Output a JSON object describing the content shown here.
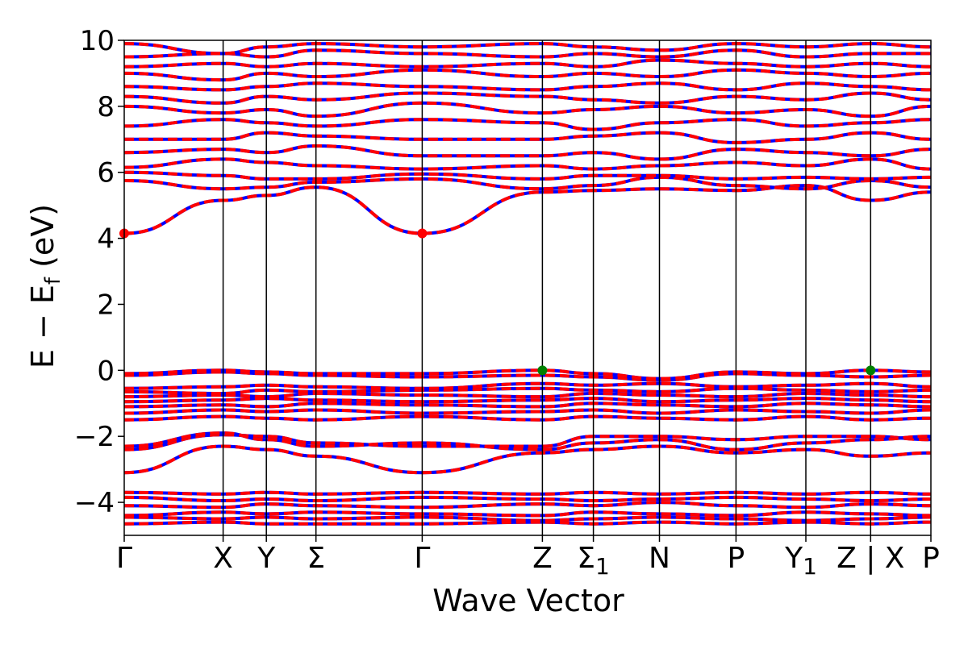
{
  "chart_data": {
    "type": "line",
    "title": "",
    "xlabel": "Wave Vector",
    "ylabel": "E − E",
    "ylabel_sub": "f",
    "ylabel_unit": " (eV)",
    "ylim": [
      -5,
      10
    ],
    "yticks": [
      {
        "value": 10,
        "label": "10"
      },
      {
        "value": 8,
        "label": "8"
      },
      {
        "value": 6,
        "label": "6"
      },
      {
        "value": 4,
        "label": "4"
      },
      {
        "value": 2,
        "label": "2"
      },
      {
        "value": 0,
        "label": "0"
      },
      {
        "value": -2,
        "label": "−2"
      },
      {
        "value": -4,
        "label": "−4"
      }
    ],
    "kpoints": [
      {
        "label": "Γ",
        "pos": 0
      },
      {
        "label": "X",
        "pos": 1.226
      },
      {
        "label": "Y",
        "pos": 1.762
      },
      {
        "label": "Σ",
        "pos": 2.377
      },
      {
        "label": "Γ",
        "pos": 3.694
      },
      {
        "label": "Z",
        "pos": 5.184
      },
      {
        "label": "Σ1",
        "pos": 5.816
      },
      {
        "label": "N",
        "pos": 6.635
      },
      {
        "label": "P",
        "pos": 7.584
      },
      {
        "label": "Y1",
        "pos": 8.45
      },
      {
        "label": "Z | X",
        "pos": 9.253
      },
      {
        "label": "P",
        "pos": 10.0
      }
    ],
    "kpoint_label_offsets": [
      0,
      0,
      0,
      0,
      0,
      0,
      0,
      0,
      0,
      -6,
      0,
      0
    ],
    "xlim": [
      0,
      10.0
    ],
    "spin_colors": {
      "up": "#ff0000",
      "down": "#0000ff"
    },
    "cbm": {
      "energy": 4.15,
      "positions": [
        0,
        3.694
      ],
      "color": "#ff0000"
    },
    "vbm": {
      "energy": 0.0,
      "positions": [
        5.184,
        9.253
      ],
      "color": "#008000"
    },
    "bands_at_kpoints": [
      [
        -4.65,
        -4.6,
        -4.65,
        -4.65,
        -4.65,
        -4.6,
        -4.65,
        -4.6,
        -4.65,
        -4.6,
        -4.65,
        -4.6
      ],
      [
        -4.45,
        -4.5,
        -4.45,
        -4.5,
        -4.45,
        -4.55,
        -4.5,
        -4.45,
        -4.5,
        -4.55,
        -4.5,
        -4.45
      ],
      [
        -4.4,
        -4.3,
        -4.35,
        -4.3,
        -4.35,
        -4.4,
        -4.3,
        -4.35,
        -4.4,
        -4.3,
        -4.35,
        -4.4
      ],
      [
        -4.1,
        -4.15,
        -4.05,
        -4.1,
        -4.15,
        -4.05,
        -4.1,
        -4.0,
        -4.1,
        -4.15,
        -4.05,
        -4.1
      ],
      [
        -3.85,
        -3.95,
        -3.9,
        -3.95,
        -3.85,
        -3.9,
        -3.95,
        -3.9,
        -3.85,
        -3.9,
        -3.95,
        -3.9
      ],
      [
        -3.7,
        -3.75,
        -3.7,
        -3.75,
        -3.7,
        -3.75,
        -3.7,
        -3.75,
        -3.7,
        -3.75,
        -3.7,
        -3.75
      ],
      [
        -3.1,
        -2.3,
        -2.4,
        -2.6,
        -3.1,
        -2.5,
        -2.4,
        -2.3,
        -2.5,
        -2.4,
        -2.6,
        -2.5
      ],
      [
        -2.4,
        -1.95,
        -2.0,
        -2.2,
        -2.3,
        -2.3,
        -2.0,
        -2.0,
        -2.1,
        -2.0,
        -2.0,
        -2.1
      ],
      [
        -2.3,
        -1.9,
        -2.1,
        -2.3,
        -2.2,
        -2.4,
        -2.2,
        -2.1,
        -2.4,
        -2.2,
        -2.1,
        -2.0
      ],
      [
        -1.5,
        -1.4,
        -1.45,
        -1.5,
        -1.4,
        -1.5,
        -1.4,
        -1.45,
        -1.5,
        -1.4,
        -1.5,
        -1.45
      ],
      [
        -1.3,
        -1.2,
        -1.25,
        -1.2,
        -1.3,
        -1.25,
        -1.2,
        -1.3,
        -1.2,
        -1.25,
        -1.3,
        -1.2
      ],
      [
        -1.1,
        -1.05,
        -1.1,
        -1.0,
        -1.05,
        -1.1,
        -1.0,
        -1.05,
        -1.1,
        -1.0,
        -1.05,
        -1.1
      ],
      [
        -0.95,
        -0.9,
        -0.85,
        -0.9,
        -0.95,
        -0.9,
        -0.85,
        -0.95,
        -0.9,
        -0.85,
        -0.9,
        -0.95
      ],
      [
        -0.8,
        -0.75,
        -0.8,
        -0.7,
        -0.75,
        -0.8,
        -0.7,
        -0.75,
        -0.8,
        -0.7,
        -0.75,
        -0.8
      ],
      [
        -0.65,
        -0.7,
        -0.6,
        -0.65,
        -0.6,
        -0.55,
        -0.6,
        -0.65,
        -0.55,
        -0.6,
        -0.65,
        -0.6
      ],
      [
        -0.55,
        -0.5,
        -0.45,
        -0.5,
        -0.55,
        -0.4,
        -0.45,
        -0.4,
        -0.5,
        -0.45,
        -0.4,
        -0.5
      ],
      [
        -0.15,
        -0.05,
        -0.1,
        -0.15,
        -0.2,
        -0.15,
        -0.2,
        -0.3,
        -0.1,
        -0.15,
        -0.2,
        -0.15
      ],
      [
        -0.1,
        0.0,
        -0.05,
        -0.1,
        -0.1,
        0.0,
        -0.1,
        -0.25,
        -0.05,
        -0.1,
        0.0,
        -0.05
      ],
      [
        4.15,
        5.15,
        5.3,
        5.55,
        4.15,
        5.4,
        5.45,
        5.5,
        5.45,
        5.6,
        5.15,
        5.4
      ],
      [
        5.75,
        5.5,
        5.55,
        5.7,
        5.8,
        5.5,
        5.6,
        5.85,
        5.6,
        5.5,
        5.75,
        5.55
      ],
      [
        6.0,
        5.9,
        5.8,
        5.8,
        5.95,
        5.8,
        5.9,
        5.9,
        5.8,
        5.85,
        5.8,
        5.85
      ],
      [
        6.15,
        6.4,
        6.3,
        6.2,
        6.1,
        6.2,
        6.1,
        6.2,
        6.3,
        6.2,
        6.4,
        6.1
      ],
      [
        6.6,
        6.7,
        6.6,
        6.8,
        6.5,
        6.5,
        6.6,
        6.4,
        6.7,
        6.6,
        6.5,
        6.7
      ],
      [
        7.0,
        7.0,
        7.2,
        7.1,
        7.0,
        7.0,
        7.1,
        7.2,
        6.9,
        7.0,
        7.2,
        7.0
      ],
      [
        7.4,
        7.6,
        7.5,
        7.4,
        7.6,
        7.5,
        7.3,
        7.5,
        7.6,
        7.4,
        7.5,
        7.6
      ],
      [
        8.0,
        7.8,
        7.9,
        7.7,
        8.1,
        7.8,
        7.9,
        8.0,
        7.8,
        7.9,
        7.7,
        8.0
      ],
      [
        8.3,
        8.1,
        8.3,
        8.2,
        8.4,
        8.3,
        8.2,
        8.1,
        8.3,
        8.2,
        8.4,
        8.2
      ],
      [
        8.6,
        8.5,
        8.6,
        8.7,
        8.6,
        8.5,
        8.6,
        8.7,
        8.5,
        8.7,
        8.6,
        8.5
      ],
      [
        9.0,
        8.8,
        9.0,
        8.9,
        9.1,
        8.9,
        9.0,
        8.9,
        9.1,
        9.0,
        8.9,
        9.0
      ],
      [
        9.2,
        9.3,
        9.2,
        9.3,
        9.2,
        9.3,
        9.2,
        9.4,
        9.3,
        9.2,
        9.3,
        9.2
      ],
      [
        9.5,
        9.6,
        9.5,
        9.7,
        9.6,
        9.5,
        9.6,
        9.5,
        9.7,
        9.5,
        9.6,
        9.6
      ],
      [
        9.9,
        9.6,
        9.8,
        9.9,
        9.8,
        9.9,
        9.8,
        9.7,
        9.9,
        9.8,
        9.9,
        9.8
      ]
    ]
  }
}
